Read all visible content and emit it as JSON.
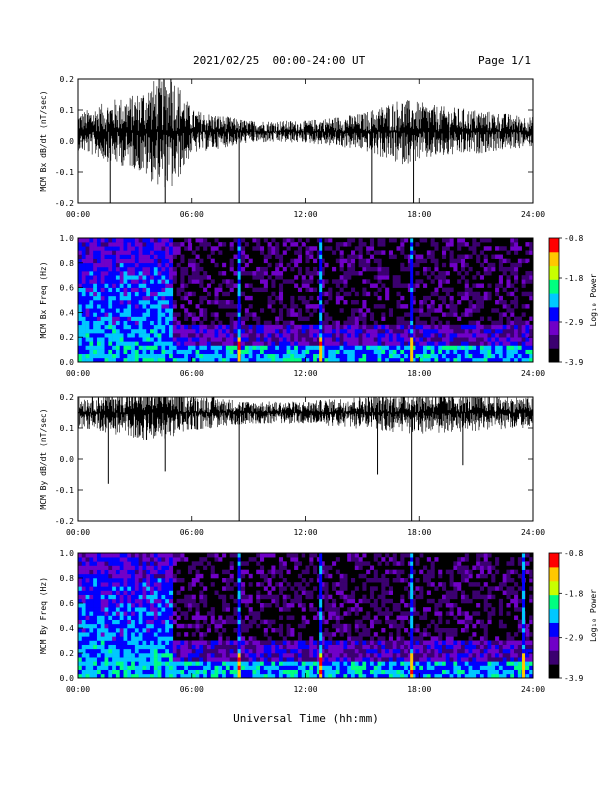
{
  "header": {
    "date_range": "2021/02/25  00:00-24:00 UT",
    "page": "Page 1/1"
  },
  "chart_data": [
    {
      "type": "line",
      "ylabel": "MCM Bx dB/dt (nT/sec)",
      "ylim": [
        -0.2,
        0.2
      ],
      "yticks": [
        "0.2",
        "0.1",
        "0.0",
        "-0.1",
        "-0.2"
      ],
      "xticks": [
        "00:00",
        "06:00",
        "12:00",
        "18:00",
        "24:00"
      ],
      "xlim_hours": [
        0,
        24
      ],
      "baseline": 0.03,
      "noise_amplitude_profile": [
        {
          "hour": 0,
          "amp": 0.05
        },
        {
          "hour": 1,
          "amp": 0.07
        },
        {
          "hour": 2,
          "amp": 0.09
        },
        {
          "hour": 3,
          "amp": 0.1
        },
        {
          "hour": 4,
          "amp": 0.14
        },
        {
          "hour": 5,
          "amp": 0.16
        },
        {
          "hour": 6,
          "amp": 0.06
        },
        {
          "hour": 9,
          "amp": 0.03
        },
        {
          "hour": 12,
          "amp": 0.03
        },
        {
          "hour": 15,
          "amp": 0.05
        },
        {
          "hour": 17,
          "amp": 0.09
        },
        {
          "hour": 19,
          "amp": 0.07
        },
        {
          "hour": 21,
          "amp": 0.06
        },
        {
          "hour": 24,
          "amp": 0.04
        }
      ],
      "spikes": [
        {
          "hour": 1.7,
          "value": -0.2
        },
        {
          "hour": 4.6,
          "value": -0.2
        },
        {
          "hour": 8.5,
          "value": -0.2
        },
        {
          "hour": 15.5,
          "value": -0.2
        },
        {
          "hour": 17.7,
          "value": -0.2
        },
        {
          "hour": 4.9,
          "value": 0.2
        }
      ]
    },
    {
      "type": "heatmap",
      "ylabel": "MCM Bx Freq (Hz)",
      "ylim": [
        0,
        1.0
      ],
      "yticks": [
        "1.0",
        "0.8",
        "0.6",
        "0.4",
        "0.2",
        "0.0"
      ],
      "xticks": [
        "00:00",
        "06:00",
        "12:00",
        "18:00",
        "24:00"
      ],
      "colorbar": {
        "label": "Log₁₀ Power",
        "ticks": [
          "-0.8",
          "-1.8",
          "-2.9",
          "-3.9"
        ],
        "range": [
          -3.9,
          -0.8
        ],
        "colors": [
          "#000000",
          "#3b0070",
          "#7000c8",
          "#0000ff",
          "#00c8ff",
          "#00ff80",
          "#c8ff00",
          "#ffc800",
          "#ff0000"
        ]
      },
      "background_level": -3.9,
      "active_interval_hours": [
        0,
        5
      ],
      "vertical_lines_hours": [
        8.5,
        12.8,
        17.6
      ]
    },
    {
      "type": "line",
      "ylabel": "MCM By dB/dt (nT/sec)",
      "ylim": [
        -0.2,
        0.2
      ],
      "yticks": [
        "0.2",
        "0.1",
        "0.0",
        "-0.1",
        "-0.2"
      ],
      "xticks": [
        "00:00",
        "06:00",
        "12:00",
        "18:00",
        "24:00"
      ],
      "xlim_hours": [
        0,
        24
      ],
      "baseline": 0.15,
      "noise_amplitude_profile": [
        {
          "hour": 0,
          "amp": 0.04
        },
        {
          "hour": 2,
          "amp": 0.06
        },
        {
          "hour": 4,
          "amp": 0.08
        },
        {
          "hour": 6,
          "amp": 0.05
        },
        {
          "hour": 9,
          "amp": 0.03
        },
        {
          "hour": 12,
          "amp": 0.03
        },
        {
          "hour": 16,
          "amp": 0.05
        },
        {
          "hour": 18,
          "amp": 0.06
        },
        {
          "hour": 21,
          "amp": 0.05
        },
        {
          "hour": 24,
          "amp": 0.04
        }
      ],
      "spikes": [
        {
          "hour": 1.6,
          "value": -0.08
        },
        {
          "hour": 4.6,
          "value": -0.04
        },
        {
          "hour": 8.5,
          "value": -0.2
        },
        {
          "hour": 15.8,
          "value": -0.05
        },
        {
          "hour": 17.6,
          "value": -0.2
        },
        {
          "hour": 20.3,
          "value": -0.02
        }
      ]
    },
    {
      "type": "heatmap",
      "ylabel": "MCM By Freq (Hz)",
      "ylim": [
        0,
        1.0
      ],
      "yticks": [
        "1.0",
        "0.8",
        "0.6",
        "0.4",
        "0.2",
        "0.0"
      ],
      "xticks": [
        "00:00",
        "06:00",
        "12:00",
        "18:00",
        "24:00"
      ],
      "colorbar": {
        "label": "Log₁₀ Power",
        "ticks": [
          "-0.8",
          "-1.8",
          "-2.9",
          "-3.9"
        ],
        "range": [
          -3.9,
          -0.8
        ],
        "colors": [
          "#000000",
          "#3b0070",
          "#7000c8",
          "#0000ff",
          "#00c8ff",
          "#00ff80",
          "#c8ff00",
          "#ffc800",
          "#ff0000"
        ]
      },
      "background_level": -3.9,
      "active_interval_hours": [
        0,
        5
      ],
      "vertical_lines_hours": [
        8.5,
        12.8,
        17.6,
        23.5
      ]
    }
  ],
  "xlabel": "Universal Time (hh:mm)"
}
